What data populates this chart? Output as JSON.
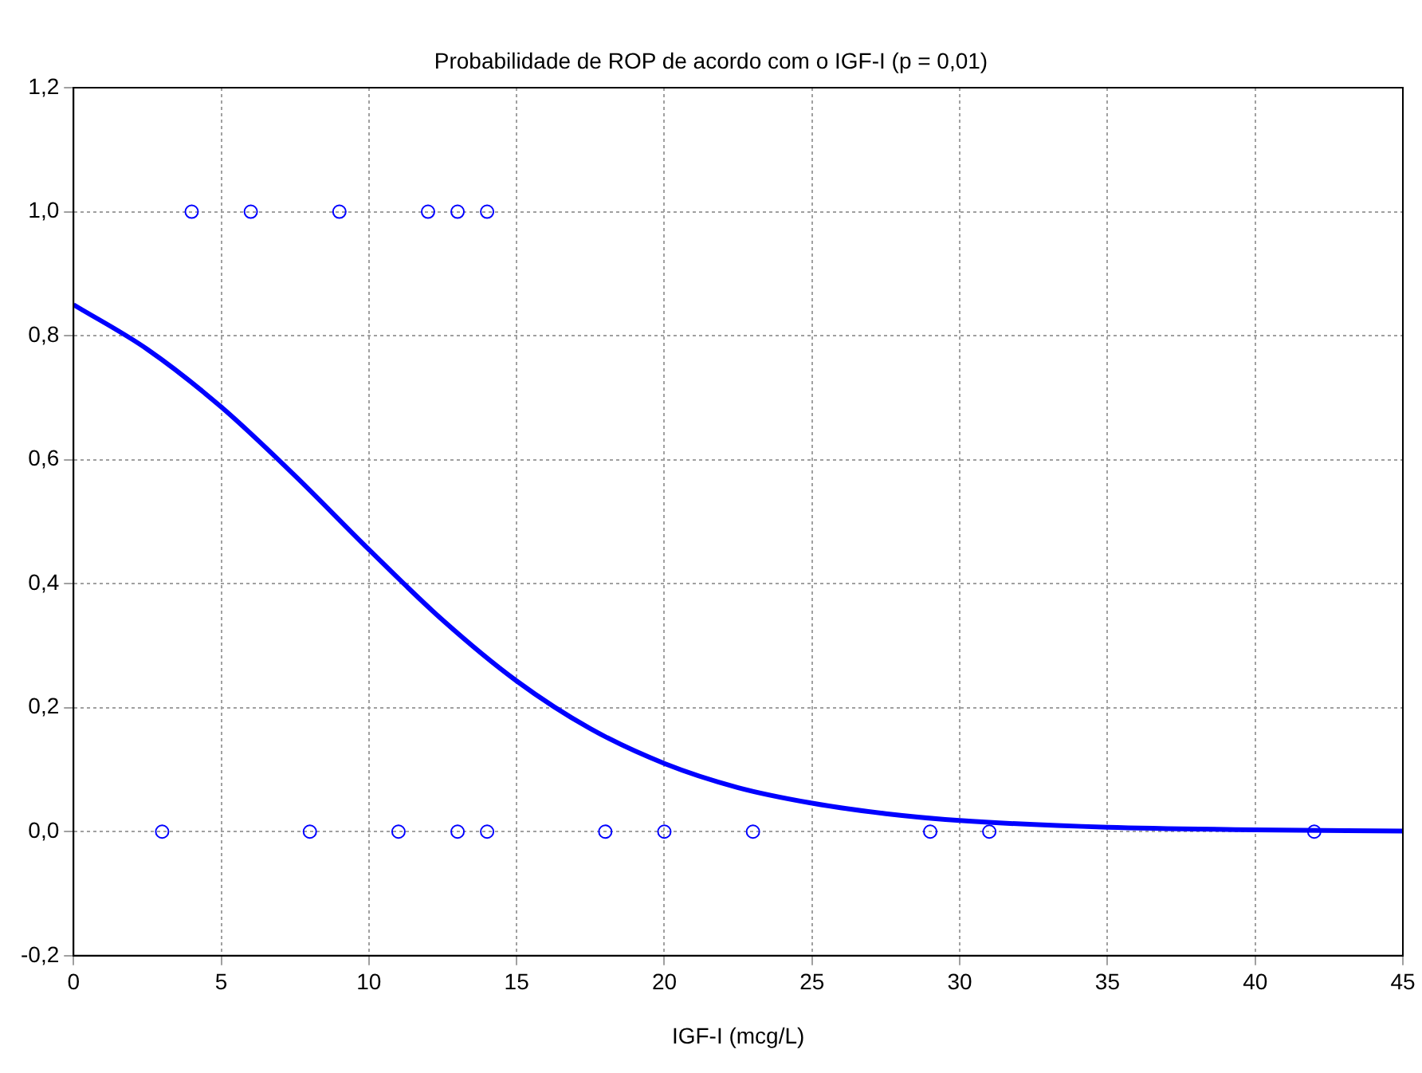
{
  "chart_data": {
    "type": "scatter",
    "title": "Probabilidade de ROP de acordo com o IGF-I (p = 0,01)",
    "xlabel": "IGF-I (mcg/L)",
    "xlim": [
      0,
      45
    ],
    "xticks": [
      0,
      5,
      10,
      15,
      20,
      25,
      30,
      35,
      40,
      45
    ],
    "ylim": [
      -0.2,
      1.2
    ],
    "yticks": [
      {
        "value": -0.2,
        "label": "-0,2"
      },
      {
        "value": 0,
        "label": "0,0"
      },
      {
        "value": 0.2,
        "label": "0,2"
      },
      {
        "value": 0.4,
        "label": "0,4"
      },
      {
        "value": 0.6,
        "label": "0,6"
      },
      {
        "value": 0.8,
        "label": "0,8"
      },
      {
        "value": 1,
        "label": "1,0"
      },
      {
        "value": 1.2,
        "label": "1,2"
      }
    ],
    "grid": true,
    "legend": false,
    "marker": "circle",
    "series": [
      {
        "color": "#0000ff",
        "x": [
          4,
          6,
          9,
          12,
          13,
          14,
          3,
          8,
          11,
          13,
          14,
          18,
          20,
          23,
          29,
          31,
          42
        ],
        "values": [
          1,
          1,
          1,
          1,
          1,
          1,
          0,
          0,
          0,
          0,
          0,
          0,
          0,
          0,
          0,
          0,
          0
        ]
      },
      {
        "type": "line",
        "color": "#0000ff",
        "marker": "none",
        "line_style": "solid",
        "x": [
          0,
          2.5,
          5,
          7.5,
          10,
          12.5,
          15,
          17.5,
          20,
          22.5,
          25,
          27.5,
          30,
          35,
          40,
          45
        ],
        "values": [
          0.85,
          0.778,
          0.685,
          0.574,
          0.455,
          0.341,
          0.243,
          0.166,
          0.11,
          0.071,
          0.046,
          0.029,
          0.018,
          0.007,
          0.003,
          0.001
        ]
      }
    ]
  }
}
